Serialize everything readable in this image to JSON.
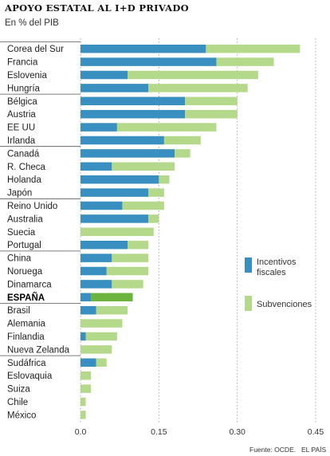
{
  "header": {
    "title": "APOYO ESTATAL AL I+D PRIVADO",
    "subtitle": "En % del PIB"
  },
  "footer": {
    "source": "Fuente: OCDE.",
    "publisher": "EL PAÍS"
  },
  "legend": {
    "items": [
      {
        "label_lines": [
          "Incentivos",
          "fiscales"
        ],
        "color": "#3a8fc1"
      },
      {
        "label_lines": [
          "Subvenciones"
        ],
        "color": "#b5d98a"
      }
    ]
  },
  "chart_data": {
    "type": "bar",
    "orientation": "horizontal",
    "stacked": true,
    "title": "APOYO ESTATAL AL I+D PRIVADO",
    "subtitle": "En % del PIB",
    "xlim": [
      0,
      0.45
    ],
    "x_ticks": [
      "0.0",
      "0.15",
      "0.30",
      "0.45"
    ],
    "grid": "vertical dotted",
    "legend_position": "right",
    "highlight": {
      "category": "ESPAÑA",
      "color": "#6db33f"
    },
    "categories": [
      "Corea del Sur",
      "Francia",
      "Eslovenia",
      "Hungría",
      "Bélgica",
      "Austria",
      "EE UU",
      "Irlanda",
      "Canadá",
      "R. Checa",
      "Holanda",
      "Japón",
      "Reino Unido",
      "Australia",
      "Suecia",
      "Portugal",
      "China",
      "Noruega",
      "Dinamarca",
      "ESPAÑA",
      "Brasil",
      "Alemania",
      "Finlandia",
      "Nueva Zelanda",
      "Sudáfrica",
      "Eslovaquia",
      "Suiza",
      "Chile",
      "México"
    ],
    "series": [
      {
        "name": "Incentivos fiscales",
        "color": "#3a8fc1",
        "values": [
          0.24,
          0.26,
          0.09,
          0.13,
          0.2,
          0.2,
          0.07,
          0.16,
          0.18,
          0.06,
          0.15,
          0.13,
          0.08,
          0.13,
          0.0,
          0.09,
          0.06,
          0.05,
          0.06,
          0.02,
          0.03,
          0.0,
          0.01,
          0.0,
          0.03,
          0.0,
          0.0,
          0.0,
          0.0
        ]
      },
      {
        "name": "Subvenciones",
        "color": "#b5d98a",
        "values": [
          0.18,
          0.11,
          0.25,
          0.19,
          0.1,
          0.1,
          0.19,
          0.07,
          0.03,
          0.12,
          0.02,
          0.03,
          0.08,
          0.02,
          0.14,
          0.04,
          0.07,
          0.08,
          0.06,
          0.08,
          0.06,
          0.08,
          0.06,
          0.06,
          0.02,
          0.02,
          0.02,
          0.01,
          0.01
        ]
      }
    ],
    "groups": [
      [
        "Corea del Sur",
        "Francia",
        "Eslovenia",
        "Hungría"
      ],
      [
        "Bélgica",
        "Austria",
        "EE UU",
        "Irlanda"
      ],
      [
        "Canadá",
        "R. Checa",
        "Holanda",
        "Japón"
      ],
      [
        "Reino Unido",
        "Australia",
        "Suecia",
        "Portugal"
      ],
      [
        "China",
        "Noruega",
        "Dinamarca",
        "ESPAÑA"
      ],
      [
        "Brasil",
        "Alemania",
        "Finlandia",
        "Nueva Zelanda"
      ],
      [
        "Sudáfrica",
        "Eslovaquia",
        "Suiza",
        "Chile",
        "México"
      ]
    ]
  }
}
